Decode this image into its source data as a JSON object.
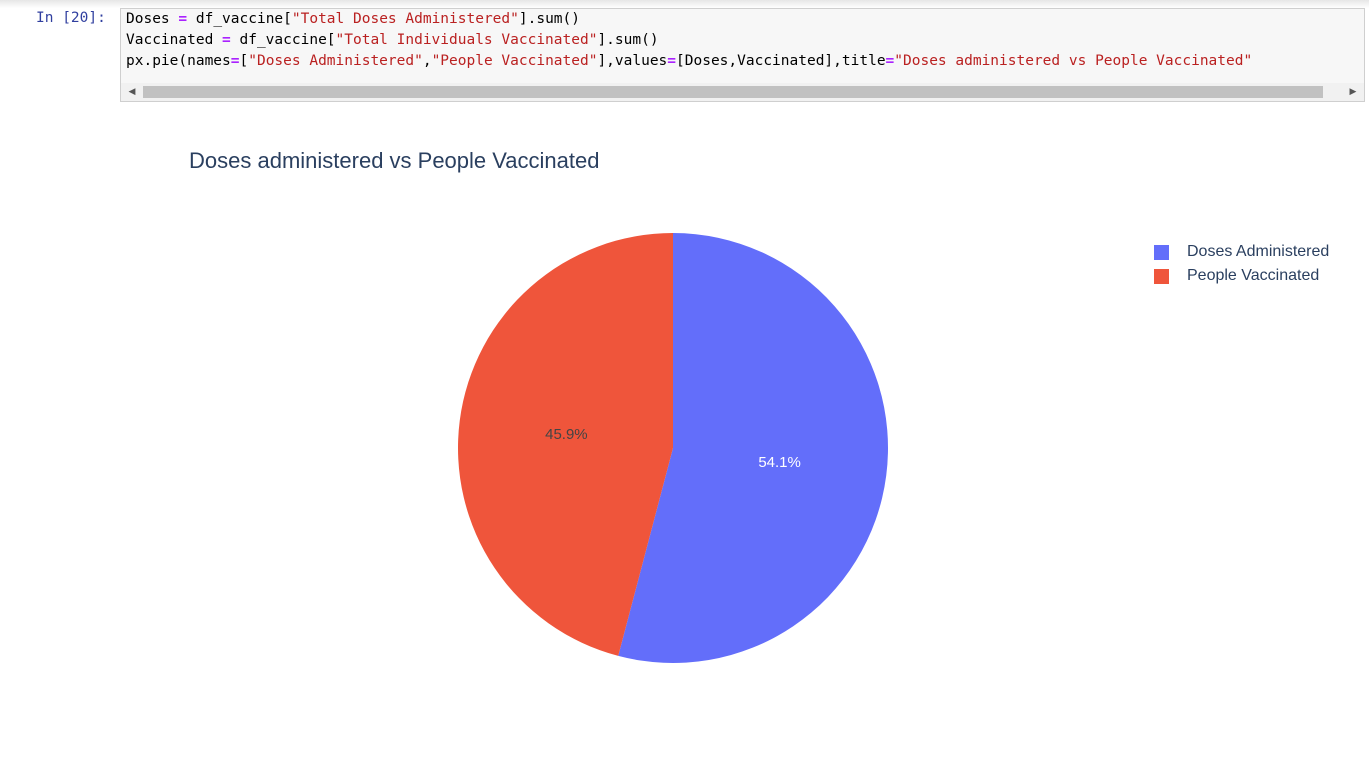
{
  "cell": {
    "prompt": "In [20]:",
    "code_lines": [
      [
        {
          "t": "Doses ",
          "c": ""
        },
        {
          "t": "=",
          "c": "op"
        },
        {
          "t": " df_vaccine[",
          "c": ""
        },
        {
          "t": "\"Total Doses Administered\"",
          "c": "str"
        },
        {
          "t": "].sum()",
          "c": ""
        }
      ],
      [
        {
          "t": "Vaccinated ",
          "c": ""
        },
        {
          "t": "=",
          "c": "op"
        },
        {
          "t": " df_vaccine[",
          "c": ""
        },
        {
          "t": "\"Total Individuals Vaccinated\"",
          "c": "str"
        },
        {
          "t": "].sum()",
          "c": ""
        }
      ],
      [
        {
          "t": "px.pie(names",
          "c": ""
        },
        {
          "t": "=",
          "c": "op"
        },
        {
          "t": "[",
          "c": ""
        },
        {
          "t": "\"Doses Administered\"",
          "c": "str"
        },
        {
          "t": ",",
          "c": ""
        },
        {
          "t": "\"People Vaccinated\"",
          "c": "str"
        },
        {
          "t": "],values",
          "c": ""
        },
        {
          "t": "=",
          "c": "op"
        },
        {
          "t": "[Doses,Vaccinated],title",
          "c": ""
        },
        {
          "t": "=",
          "c": "op"
        },
        {
          "t": "\"Doses administered vs People Vaccinated\"",
          "c": "str"
        }
      ]
    ],
    "scroll_left_icon": "triangle-left",
    "scroll_right_icon": "triangle-right"
  },
  "chart_data": {
    "type": "pie",
    "title": "Doses administered vs People Vaccinated",
    "labels": [
      "Doses Administered",
      "People Vaccinated"
    ],
    "values": [
      54.1,
      45.9
    ],
    "value_labels": [
      "54.1%",
      "45.9%"
    ],
    "colors": [
      "#636efa",
      "#ef553b"
    ],
    "legend_position": "top-right"
  }
}
